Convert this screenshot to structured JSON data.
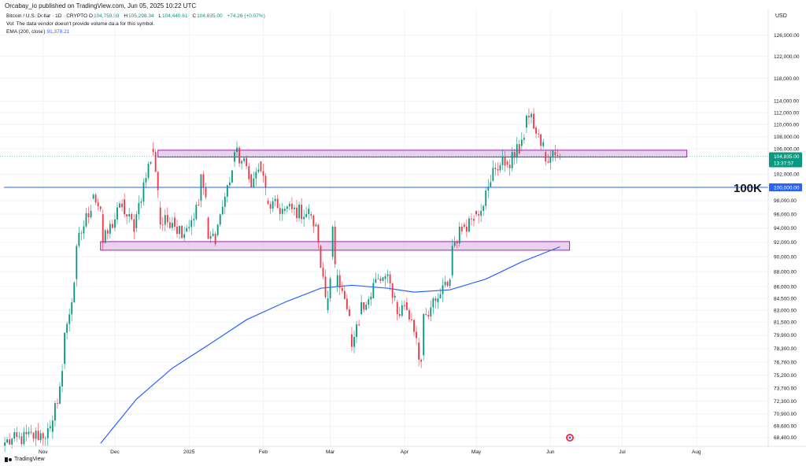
{
  "header": {
    "publisher_line": "Orcabay_io published on TradingView.com, Jun 05, 2025 10:22 UTC"
  },
  "legend": {
    "symbol": "Bitcoin / U.S. Dollar · 1D · CRYPTO",
    "ohlc": [
      {
        "label": "O",
        "value": "104,759.59"
      },
      {
        "label": "H",
        "value": "105,298.34"
      },
      {
        "label": "L",
        "value": "104,440.61"
      },
      {
        "label": "C",
        "value": "104,835.00"
      }
    ],
    "change": "+74.26 (+0.07%)",
    "vol_note": "Vol: The data vendor doesn't provide volume data for this symbol.",
    "ema_label": "EMA (200, close)",
    "ema_value": "91,378.21"
  },
  "axis": {
    "currency": "USD"
  },
  "brand": {
    "name": "TradingView"
  },
  "colors": {
    "up": "#089981",
    "down": "#f23645",
    "ema": "#2962ff",
    "zone_fill": "#e1bee7",
    "zone_stroke": "#9c27b0",
    "level_line": "#2962ff"
  },
  "chart_data": {
    "type": "candlestick",
    "symbol": "BTCUSD",
    "timeframe": "1D",
    "x_ticks": [
      {
        "label": "Nov",
        "date": "2024-11-01"
      },
      {
        "label": "Dec",
        "date": "2024-12-01"
      },
      {
        "label": "2025",
        "date": "2025-01-01"
      },
      {
        "label": "Feb",
        "date": "2025-02-01"
      },
      {
        "label": "Mar",
        "date": "2025-03-01"
      },
      {
        "label": "Apr",
        "date": "2025-04-01"
      },
      {
        "label": "May",
        "date": "2025-05-01"
      },
      {
        "label": "Jun",
        "date": "2025-06-01"
      },
      {
        "label": "Jul",
        "date": "2025-07-01"
      },
      {
        "label": "Aug",
        "date": "2025-08-01"
      }
    ],
    "x_range": [
      "2024-10-14",
      "2025-08-31"
    ],
    "y_scale": "log",
    "ylim": [
      67500,
      131000
    ],
    "y_ticks": [
      {
        "label": "126,000.00",
        "value": 126000
      },
      {
        "label": "122,000.00",
        "value": 122000
      },
      {
        "label": "118,000.00",
        "value": 118000
      },
      {
        "label": "114,000.00",
        "value": 114000
      },
      {
        "label": "112,000.00",
        "value": 112000
      },
      {
        "label": "110,000.00",
        "value": 110000
      },
      {
        "label": "108,000.00",
        "value": 108000
      },
      {
        "label": "106,000.00",
        "value": 106000
      },
      {
        "label": "102,000.00",
        "value": 102000
      },
      {
        "label": "98,000.00",
        "value": 98000
      },
      {
        "label": "96,000.00",
        "value": 96000
      },
      {
        "label": "94,000.00",
        "value": 94000
      },
      {
        "label": "92,000.00",
        "value": 92000
      },
      {
        "label": "90,000.00",
        "value": 90000
      },
      {
        "label": "88,000.00",
        "value": 88000
      },
      {
        "label": "86,000.00",
        "value": 86000
      },
      {
        "label": "84,500.00",
        "value": 84500
      },
      {
        "label": "83,000.00",
        "value": 83000
      },
      {
        "label": "81,500.00",
        "value": 81500
      },
      {
        "label": "79,900.00",
        "value": 79900
      },
      {
        "label": "78,300.00",
        "value": 78300
      },
      {
        "label": "76,700.00",
        "value": 76700
      },
      {
        "label": "75,200.00",
        "value": 75200
      },
      {
        "label": "73,700.00",
        "value": 73700
      },
      {
        "label": "72,300.00",
        "value": 72300
      },
      {
        "label": "70,900.00",
        "value": 70900
      },
      {
        "label": "69,600.00",
        "value": 69600
      },
      {
        "label": "68,400.00",
        "value": 68400
      }
    ],
    "price_badge": {
      "value": 104835,
      "label": "104,835.00",
      "countdown": "13:37:57"
    },
    "level_line": {
      "value": 100000,
      "axis_label": "100,000.00",
      "annotation": "100K"
    },
    "zones": [
      {
        "from": "2024-12-19",
        "to": "2025-07-28",
        "top": 105800,
        "bottom": 104700
      },
      {
        "from": "2024-11-25",
        "to": "2025-06-09",
        "top": 92100,
        "bottom": 90900
      }
    ],
    "anchors": [
      {
        "date": "2024-10-16",
        "o": 67500,
        "c": 67900
      },
      {
        "date": "2024-11-05",
        "o": 69000,
        "c": 70200
      },
      {
        "date": "2024-11-10",
        "o": 76500,
        "c": 80200
      },
      {
        "date": "2024-11-15",
        "o": 87000,
        "c": 91500
      },
      {
        "date": "2024-11-22",
        "o": 98300,
        "c": 98900
      },
      {
        "date": "2024-11-26",
        "o": 96000,
        "c": 91900
      },
      {
        "date": "2024-12-05",
        "o": 98200,
        "c": 96000
      },
      {
        "date": "2024-12-10",
        "o": 94000,
        "c": 96000
      },
      {
        "date": "2024-12-17",
        "o": 106000,
        "c": 105500
      },
      {
        "date": "2024-12-20",
        "o": 97000,
        "c": 94500
      },
      {
        "date": "2024-12-26",
        "o": 95500,
        "c": 94200
      },
      {
        "date": "2024-12-31",
        "o": 93500,
        "c": 94000
      },
      {
        "date": "2025-01-06",
        "o": 98000,
        "c": 102000
      },
      {
        "date": "2025-01-09",
        "o": 95500,
        "c": 92500
      },
      {
        "date": "2025-01-13",
        "o": 93000,
        "c": 94500
      },
      {
        "date": "2025-01-20",
        "o": 104000,
        "c": 105500
      },
      {
        "date": "2025-01-27",
        "o": 102000,
        "c": 100000
      },
      {
        "date": "2025-01-31",
        "o": 104000,
        "c": 102500
      },
      {
        "date": "2025-02-03",
        "o": 98000,
        "c": 97500
      },
      {
        "date": "2025-02-10",
        "o": 96500,
        "c": 96800
      },
      {
        "date": "2025-02-21",
        "o": 96000,
        "c": 95800
      },
      {
        "date": "2025-02-25",
        "o": 91500,
        "c": 88500
      },
      {
        "date": "2025-02-28",
        "o": 83000,
        "c": 84500
      },
      {
        "date": "2025-03-02",
        "o": 90000,
        "c": 94200
      },
      {
        "date": "2025-03-04",
        "o": 86000,
        "c": 87500
      },
      {
        "date": "2025-03-10",
        "o": 80000,
        "c": 78500
      },
      {
        "date": "2025-03-14",
        "o": 82500,
        "c": 84000
      },
      {
        "date": "2025-03-19",
        "o": 84500,
        "c": 86500
      },
      {
        "date": "2025-03-24",
        "o": 87000,
        "c": 87400
      },
      {
        "date": "2025-03-29",
        "o": 84000,
        "c": 82500
      },
      {
        "date": "2025-04-02",
        "o": 84000,
        "c": 83000
      },
      {
        "date": "2025-04-07",
        "o": 79000,
        "c": 77000
      },
      {
        "date": "2025-04-09",
        "o": 77500,
        "c": 82500
      },
      {
        "date": "2025-04-15",
        "o": 84000,
        "c": 84500
      },
      {
        "date": "2025-04-21",
        "o": 87500,
        "c": 91500
      },
      {
        "date": "2025-04-26",
        "o": 94500,
        "c": 94200
      },
      {
        "date": "2025-05-01",
        "o": 96500,
        "c": 96000
      },
      {
        "date": "2025-05-08",
        "o": 101000,
        "c": 103000
      },
      {
        "date": "2025-05-14",
        "o": 104000,
        "c": 103500
      },
      {
        "date": "2025-05-20",
        "o": 106500,
        "c": 107500
      },
      {
        "date": "2025-05-22",
        "o": 109500,
        "c": 111500
      },
      {
        "date": "2025-05-26",
        "o": 109500,
        "c": 108500
      },
      {
        "date": "2025-05-30",
        "o": 105500,
        "c": 104000
      },
      {
        "date": "2025-06-03",
        "o": 105500,
        "c": 105000
      },
      {
        "date": "2025-06-05",
        "o": 104760,
        "c": 104835
      }
    ],
    "ema": [
      {
        "date": "2024-11-25",
        "value": 67800
      },
      {
        "date": "2024-12-10",
        "value": 72500
      },
      {
        "date": "2024-12-25",
        "value": 76000
      },
      {
        "date": "2025-01-10",
        "value": 78900
      },
      {
        "date": "2025-01-25",
        "value": 81800
      },
      {
        "date": "2025-02-10",
        "value": 84000
      },
      {
        "date": "2025-02-25",
        "value": 85800
      },
      {
        "date": "2025-03-10",
        "value": 86200
      },
      {
        "date": "2025-03-25",
        "value": 85800
      },
      {
        "date": "2025-04-05",
        "value": 85300
      },
      {
        "date": "2025-04-20",
        "value": 85600
      },
      {
        "date": "2025-05-05",
        "value": 87000
      },
      {
        "date": "2025-05-20",
        "value": 89300
      },
      {
        "date": "2025-06-05",
        "value": 91378
      }
    ]
  }
}
